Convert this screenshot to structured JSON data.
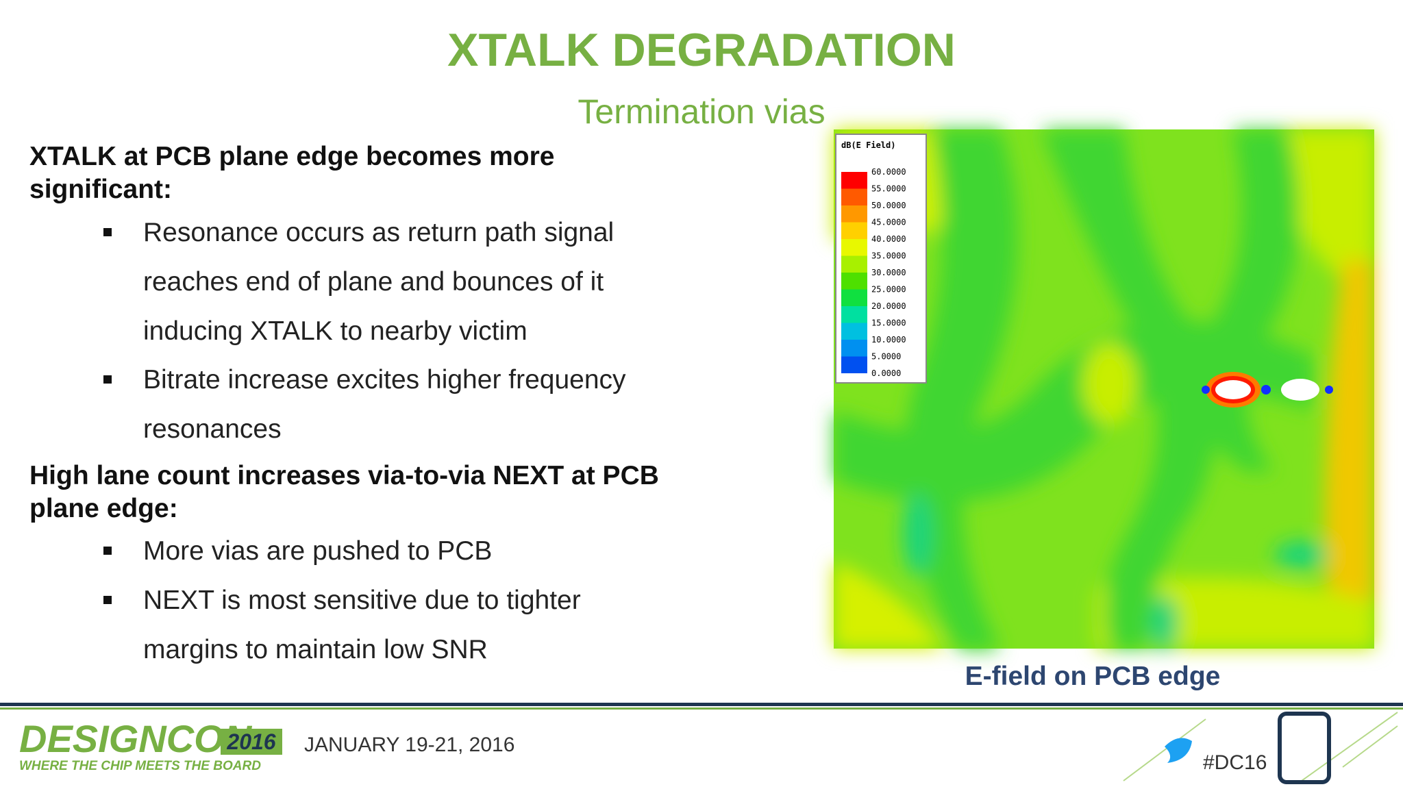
{
  "header": {
    "title": "XTALK DEGRADATION",
    "subtitle": "Termination vias"
  },
  "sections": [
    {
      "heading": "XTALK at PCB plane edge becomes more significant:",
      "bullets": [
        "Resonance occurs as return path signal reaches end of plane and bounces of it inducing XTALK to nearby victim",
        "Bitrate increase excites higher frequency resonances"
      ]
    },
    {
      "heading": "High lane count increases via-to-via NEXT at PCB plane edge:",
      "bullets": [
        "More vias are pushed to PCB",
        "NEXT is most sensitive due to tighter margins to maintain low SNR"
      ]
    }
  ],
  "figure": {
    "legend_title": "dB(E Field)",
    "legend_labels": [
      "60.0000",
      "55.0000",
      "50.0000",
      "45.0000",
      "40.0000",
      "35.0000",
      "30.0000",
      "25.0000",
      "20.0000",
      "15.0000",
      "10.0000",
      "5.0000",
      "0.0000"
    ],
    "caption": "E-field on PCB edge"
  },
  "footer": {
    "logo": "DESIGNCON",
    "logo_year": "2016",
    "tagline": "WHERE THE CHIP MEETS THE BOARD",
    "dates": "JANUARY 19-21, 2016",
    "hashtag": "#DC16"
  }
}
